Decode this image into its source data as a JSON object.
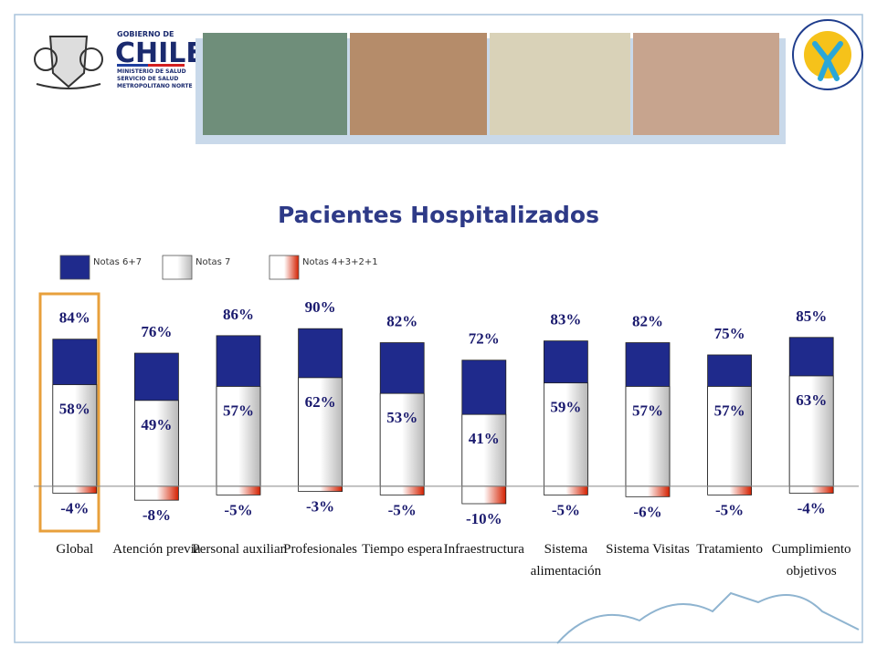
{
  "header": {
    "gov_lines": [
      "GOBIERNO DE",
      "CHILE",
      "MINISTERIO DE SALUD",
      "SERVICIO DE SALUD",
      "METROPOLITANO NORTE"
    ]
  },
  "chart_data": {
    "type": "bar",
    "title": "Pacientes Hospitalizados",
    "categories": [
      "Global",
      "Atención previa",
      "Personal auxiliar",
      "Profesionales",
      "Tiempo espera",
      "Infraestructura",
      "Sistema\nalimentación",
      "Sistema Visitas",
      "Tratamiento",
      "Cumplimiento\nobjetivos"
    ],
    "series": [
      {
        "name": "Notas 6+7",
        "color": "#1f2a8c",
        "values": [
          84,
          76,
          86,
          90,
          82,
          72,
          83,
          82,
          75,
          85
        ],
        "value_labels": [
          "84%",
          "76%",
          "86%",
          "90%",
          "82%",
          "72%",
          "83%",
          "82%",
          "75%",
          "85%"
        ]
      },
      {
        "name": "Notas 7",
        "color": "#b8b8b8",
        "values": [
          58,
          49,
          57,
          62,
          53,
          41,
          59,
          57,
          57,
          63
        ],
        "value_labels": [
          "58%",
          "49%",
          "57%",
          "62%",
          "53%",
          "41%",
          "59%",
          "57%",
          "57%",
          "63%"
        ]
      },
      {
        "name": "Notas 4+3+2+1",
        "color": "#d42000",
        "values": [
          -4,
          -8,
          -5,
          -3,
          -5,
          -10,
          -5,
          -6,
          -5,
          -4
        ],
        "value_labels": [
          "-4%",
          "-8%",
          "-5%",
          "-3%",
          "-5%",
          "-10%",
          "-5%",
          "-6%",
          "-5%",
          "-4%"
        ]
      }
    ],
    "ylim": [
      -10,
      100
    ]
  }
}
